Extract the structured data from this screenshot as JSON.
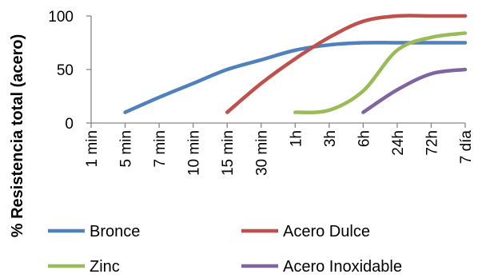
{
  "chart_data": {
    "type": "line",
    "ylabel": "% Resistencia total (acero)",
    "xlabel": "",
    "title": "",
    "categories": [
      "1 min",
      "5 min",
      "7 min",
      "10 min",
      "15 min",
      "30 min",
      "1h",
      "3h",
      "6h",
      "24h",
      "72h",
      "7 día"
    ],
    "yticks": [
      0,
      50,
      100
    ],
    "ylim": [
      0,
      100
    ],
    "grid": false,
    "legend_position": "bottom",
    "series": [
      {
        "name": "Bronce",
        "color": "#4f81bd",
        "values": [
          null,
          10,
          24,
          37,
          50,
          59,
          68,
          73,
          75,
          75,
          75,
          75
        ]
      },
      {
        "name": "Acero Dulce",
        "color": "#c0504d",
        "values": [
          null,
          null,
          null,
          null,
          10,
          37,
          60,
          80,
          95,
          100,
          100,
          100
        ]
      },
      {
        "name": "Zinc",
        "color": "#9bbb59",
        "values": [
          null,
          null,
          null,
          null,
          null,
          null,
          10,
          12,
          30,
          68,
          80,
          84
        ]
      },
      {
        "name": "Acero Inoxidable",
        "color": "#8064a2",
        "values": [
          null,
          null,
          null,
          null,
          null,
          null,
          null,
          null,
          10,
          31,
          46,
          50
        ]
      }
    ]
  }
}
